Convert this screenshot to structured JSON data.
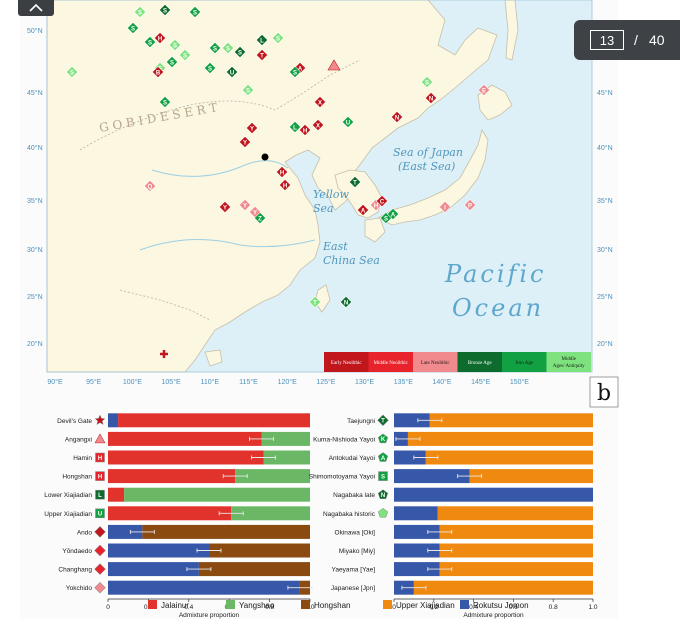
{
  "viewer": {
    "page_current": "13",
    "page_separator": "/",
    "page_total": "40"
  },
  "map": {
    "ocean_label_1": "Pacific",
    "ocean_label_2": "Ocean",
    "sea_japan_1": "Sea of Japan",
    "sea_japan_2": "(East Sea)",
    "yellow_sea_1": "Yellow",
    "yellow_sea_2": "Sea",
    "east_china_sea_1": "East",
    "east_china_sea_2": "China Sea",
    "gobi": "G O B I   D E S E R T",
    "lat_labels": [
      "50°N",
      "45°N",
      "40°N",
      "35°N",
      "30°N",
      "25°N",
      "20°N"
    ],
    "lon_labels": [
      "90°E",
      "95°E",
      "100°E",
      "105°E",
      "110°E",
      "115°E",
      "120°E",
      "125°E",
      "130°E",
      "135°E",
      "140°E",
      "145°E",
      "150°E"
    ],
    "legend": [
      {
        "label": "Early Neolithic",
        "color": "#c0161c"
      },
      {
        "label": "Middle Neolithic",
        "color": "#e8232b"
      },
      {
        "label": "Late Neolithic",
        "color": "#f08a8d"
      },
      {
        "label": "Bronze Age",
        "color": "#0e6b2e"
      },
      {
        "label": "Iron Age",
        "color": "#12a142"
      },
      {
        "label": "Middle Ages/ Antiquity",
        "color": "#7ee37e"
      }
    ],
    "panel_label": "b"
  },
  "colors": {
    "Jalainur": "#e2322c",
    "Yangshao": "#6ab865",
    "Hongshan": "#8b4a10",
    "Upper Xiajiadian": "#f0890f",
    "Rokutsu Jomon": "#3757a8"
  },
  "legend_bottom": [
    "Jalainur",
    "Yangshao",
    "Hongshan",
    "Upper Xiajiadian",
    "Rokutsu Jomon"
  ],
  "chart_data": [
    {
      "type": "bar",
      "orientation": "horizontal",
      "stacked": true,
      "xlabel": "Admixture proportion",
      "xlim": [
        0,
        1
      ],
      "ticks": [
        "0",
        "0.2",
        "0.4",
        "0.6",
        "0.8",
        "1.0"
      ],
      "categories": [
        "Devil's Gate",
        "Angangxi",
        "Hamin",
        "Hongshan",
        "Lower Xiajiadian",
        "Upper Xiajiadian",
        "Ando",
        "Yŏndaedo",
        "Changhang",
        "Yokchido"
      ],
      "symbols": [
        {
          "shape": "star",
          "letter": "",
          "color": "#c0161c"
        },
        {
          "shape": "triangle",
          "letter": "",
          "color": "#f08a8d"
        },
        {
          "shape": "square",
          "letter": "H",
          "color": "#e8232b"
        },
        {
          "shape": "square",
          "letter": "H",
          "color": "#e8232b"
        },
        {
          "shape": "square",
          "letter": "L",
          "color": "#0e6b2e"
        },
        {
          "shape": "square",
          "letter": "U",
          "color": "#12a142"
        },
        {
          "shape": "diamond",
          "letter": "",
          "color": "#c0161c"
        },
        {
          "shape": "diamond",
          "letter": "",
          "color": "#e8232b"
        },
        {
          "shape": "diamond",
          "letter": "",
          "color": "#e8232b"
        },
        {
          "shape": "diamond",
          "letter": "",
          "color": "#f08a8d"
        }
      ],
      "series": [
        {
          "name": "Rokutsu Jomon",
          "values": [
            0.05,
            0,
            0,
            0,
            0,
            0,
            0,
            0,
            0,
            0
          ]
        },
        {
          "name": "Jalainur",
          "values": [
            0.95,
            0.76,
            0.77,
            0.63,
            0.08,
            0.61,
            0,
            0,
            0,
            0
          ]
        },
        {
          "name": "Yangshao",
          "values": [
            0,
            0.24,
            0.23,
            0.37,
            0.92,
            0.39,
            0,
            0,
            0,
            0
          ]
        },
        {
          "name": "Hongshan",
          "values": [
            0,
            0,
            0,
            0,
            0,
            0,
            0,
            0,
            0,
            0
          ]
        },
        {
          "name": "Rokutsu Jomon",
          "values": [
            0,
            0,
            0,
            0,
            0,
            0,
            0.17,
            0.5,
            0.45,
            0.95
          ]
        },
        {
          "name": "Hongshan",
          "values": [
            0,
            0,
            0,
            0,
            0,
            0,
            0.83,
            0.5,
            0.55,
            0.05
          ]
        }
      ],
      "error_bars": [
        null,
        0.76,
        0.77,
        0.63,
        null,
        0.61,
        0.17,
        0.5,
        0.45,
        0.95
      ]
    },
    {
      "type": "bar",
      "orientation": "horizontal",
      "stacked": true,
      "xlabel": "Admixture proportion",
      "xlim": [
        0,
        1
      ],
      "ticks": [
        "0",
        "0.2",
        "0.4",
        "0.6",
        "0.8",
        "1.0"
      ],
      "categories": [
        "Taejungni",
        "Kuma-Nishioda Yayoi",
        "Antokudai Yayoi",
        "Shimomotoyama Yayoi",
        "Nagabaka late",
        "Nagabaka historic",
        "Okinawa [Oki]",
        "Miyako [Miy]",
        "Yaeyama [Yae]",
        "Japanese [Jpn]"
      ],
      "symbols": [
        {
          "shape": "diamond",
          "letter": "T",
          "color": "#0e6b2e"
        },
        {
          "shape": "pentagon",
          "letter": "K",
          "color": "#12a142"
        },
        {
          "shape": "pentagon",
          "letter": "A",
          "color": "#12a142"
        },
        {
          "shape": "square",
          "letter": "S",
          "color": "#12a142"
        },
        {
          "shape": "pentagon",
          "letter": "N",
          "color": "#0e6b2e"
        },
        {
          "shape": "pentagon",
          "letter": "",
          "color": "#7ee37e"
        },
        {
          "shape": "none",
          "letter": "",
          "color": "#ffffff"
        },
        {
          "shape": "none",
          "letter": "",
          "color": "#ffffff"
        },
        {
          "shape": "none",
          "letter": "",
          "color": "#ffffff"
        },
        {
          "shape": "none",
          "letter": "",
          "color": "#ffffff"
        }
      ],
      "series": [
        {
          "name": "Rokutsu Jomon",
          "values": [
            0.18,
            0.07,
            0.16,
            0.38,
            1.0,
            0.22,
            0.23,
            0.23,
            0.23,
            0.1
          ]
        },
        {
          "name": "Upper Xiajiadian",
          "values": [
            0.82,
            0.93,
            0.84,
            0.62,
            0,
            0.78,
            0.77,
            0.77,
            0.77,
            0.9
          ]
        }
      ],
      "error_bars": [
        0.18,
        0.07,
        0.16,
        0.38,
        null,
        null,
        0.23,
        0.23,
        0.23,
        0.1
      ]
    }
  ]
}
